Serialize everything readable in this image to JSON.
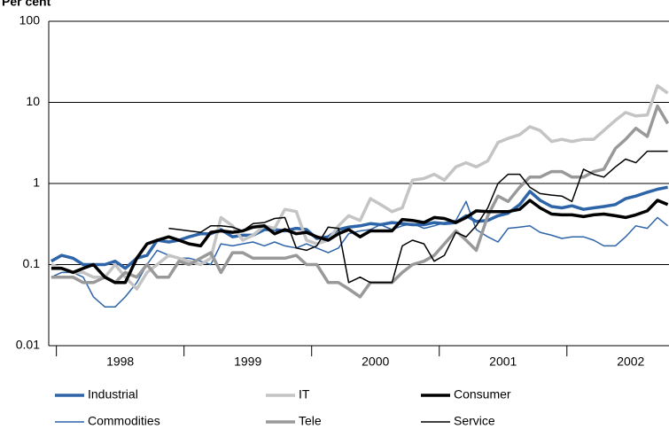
{
  "chart_data": {
    "type": "line",
    "y_label": "Per cent",
    "log_scale": true,
    "grid": true,
    "x": [
      1997.96,
      1998.04,
      1998.13,
      1998.21,
      1998.29,
      1998.38,
      1998.46,
      1998.54,
      1998.63,
      1998.71,
      1998.79,
      1998.88,
      1998.96,
      1999.04,
      1999.13,
      1999.21,
      1999.29,
      1999.38,
      1999.46,
      1999.54,
      1999.63,
      1999.71,
      1999.79,
      1999.88,
      1999.96,
      2000.04,
      2000.13,
      2000.21,
      2000.29,
      2000.38,
      2000.46,
      2000.54,
      2000.63,
      2000.71,
      2000.79,
      2000.88,
      2000.96,
      2001.04,
      2001.13,
      2001.21,
      2001.29,
      2001.38,
      2001.46,
      2001.54,
      2001.63,
      2001.71,
      2001.79,
      2001.88,
      2001.96,
      2002.04,
      2002.13,
      2002.21,
      2002.29,
      2002.38,
      2002.46,
      2002.54,
      2002.63,
      2002.71,
      2002.79
    ],
    "xlim": [
      1997.94,
      2002.8
    ],
    "xticks": [
      {
        "value": 1998.5,
        "label": "1998"
      },
      {
        "value": 1999.5,
        "label": "1999"
      },
      {
        "value": 2000.5,
        "label": "2000"
      },
      {
        "value": 2001.5,
        "label": "2001"
      },
      {
        "value": 2002.5,
        "label": "2002"
      }
    ],
    "xtick_marks": [
      1998,
      1999,
      2000,
      2001,
      2002
    ],
    "ylim": [
      0.01,
      100
    ],
    "yticks": [
      0.01,
      0.1,
      1,
      10,
      100
    ],
    "series": [
      {
        "name": "Industrial",
        "color": "#2e64a8",
        "width": 3.5,
        "values": [
          0.11,
          0.13,
          0.12,
          0.1,
          0.1,
          0.1,
          0.11,
          0.09,
          0.12,
          0.13,
          0.2,
          0.19,
          0.2,
          0.22,
          0.24,
          0.24,
          0.27,
          0.22,
          0.23,
          0.23,
          0.27,
          0.27,
          0.26,
          0.28,
          0.27,
          0.21,
          0.22,
          0.27,
          0.29,
          0.3,
          0.32,
          0.31,
          0.33,
          0.32,
          0.31,
          0.31,
          0.33,
          0.32,
          0.33,
          0.4,
          0.34,
          0.35,
          0.4,
          0.43,
          0.55,
          0.8,
          0.62,
          0.52,
          0.5,
          0.53,
          0.48,
          0.5,
          0.52,
          0.55,
          0.65,
          0.7,
          0.78,
          0.85,
          0.9
        ]
      },
      {
        "name": "IT",
        "color": "#c4c4c4",
        "width": 3.5,
        "values": [
          0.1,
          0.09,
          0.08,
          0.08,
          0.07,
          0.07,
          0.1,
          0.07,
          0.05,
          0.08,
          0.1,
          0.13,
          0.12,
          0.11,
          0.1,
          0.12,
          0.38,
          0.3,
          0.2,
          0.23,
          0.3,
          0.28,
          0.48,
          0.45,
          0.2,
          0.18,
          0.2,
          0.3,
          0.4,
          0.35,
          0.65,
          0.55,
          0.45,
          0.5,
          1.1,
          1.15,
          1.3,
          1.1,
          1.6,
          1.8,
          1.6,
          1.9,
          3.2,
          3.6,
          4,
          5,
          4.5,
          3.3,
          3.5,
          3.3,
          3.5,
          3.5,
          4.5,
          6,
          7.5,
          6.8,
          7,
          16,
          13
        ]
      },
      {
        "name": "Consumer",
        "color": "#000000",
        "width": 3.5,
        "values": [
          0.09,
          0.09,
          0.08,
          0.09,
          0.1,
          0.07,
          0.06,
          0.06,
          0.12,
          0.18,
          0.2,
          0.22,
          0.2,
          0.18,
          0.17,
          0.25,
          0.26,
          0.25,
          0.26,
          0.29,
          0.3,
          0.24,
          0.27,
          0.24,
          0.25,
          0.22,
          0.2,
          0.24,
          0.27,
          0.22,
          0.26,
          0.26,
          0.26,
          0.36,
          0.35,
          0.33,
          0.38,
          0.37,
          0.33,
          0.38,
          0.46,
          0.45,
          0.45,
          0.45,
          0.48,
          0.62,
          0.5,
          0.42,
          0.41,
          0.41,
          0.39,
          0.41,
          0.42,
          0.4,
          0.38,
          0.41,
          0.46,
          0.62,
          0.55
        ]
      },
      {
        "name": "Commodities",
        "color": "#2e64a8",
        "width": 1.5,
        "values": [
          0.07,
          0.08,
          0.08,
          0.07,
          0.04,
          0.03,
          0.03,
          0.04,
          0.06,
          0.1,
          0.15,
          0.13,
          0.12,
          0.12,
          0.11,
          0.1,
          0.18,
          0.17,
          0.18,
          0.19,
          0.17,
          0.19,
          0.17,
          0.16,
          0.18,
          0.16,
          0.14,
          0.16,
          0.24,
          0.26,
          0.27,
          0.31,
          0.27,
          0.3,
          0.32,
          0.28,
          0.3,
          0.33,
          0.35,
          0.6,
          0.27,
          0.22,
          0.19,
          0.28,
          0.29,
          0.3,
          0.25,
          0.23,
          0.21,
          0.22,
          0.22,
          0.2,
          0.17,
          0.17,
          0.22,
          0.3,
          0.28,
          0.38,
          0.3
        ]
      },
      {
        "name": "Tele",
        "color": "#999999",
        "width": 3.5,
        "values": [
          0.07,
          0.07,
          0.07,
          0.06,
          0.06,
          0.07,
          0.06,
          0.08,
          0.07,
          0.1,
          0.07,
          0.07,
          0.11,
          0.1,
          0.12,
          0.14,
          0.08,
          0.14,
          0.14,
          0.12,
          0.12,
          0.12,
          0.12,
          0.13,
          0.1,
          0.1,
          0.06,
          0.06,
          0.05,
          0.04,
          0.06,
          0.06,
          0.06,
          0.08,
          0.1,
          0.11,
          0.13,
          0.18,
          0.26,
          0.2,
          0.15,
          0.4,
          0.7,
          0.6,
          0.9,
          1.2,
          1.2,
          1.4,
          1.4,
          1.2,
          1.2,
          1.4,
          1.5,
          2.7,
          3.5,
          4.8,
          3.8,
          9,
          5.5
        ]
      },
      {
        "name": "Service",
        "color": "#000000",
        "width": 1.5,
        "values": [
          null,
          null,
          null,
          null,
          null,
          null,
          null,
          null,
          null,
          null,
          null,
          0.28,
          0.27,
          0.26,
          0.25,
          0.3,
          0.3,
          0.29,
          0.26,
          0.32,
          0.33,
          0.37,
          0.38,
          0.16,
          0.15,
          0.17,
          0.29,
          0.28,
          0.06,
          0.07,
          0.06,
          0.06,
          0.06,
          0.17,
          0.2,
          0.18,
          0.11,
          0.13,
          0.25,
          0.22,
          0.3,
          0.5,
          1,
          1.3,
          1.3,
          0.9,
          0.75,
          0.72,
          0.7,
          0.6,
          1.5,
          1.3,
          1.2,
          1.6,
          2,
          1.8,
          2.5,
          2.5,
          2.5
        ]
      }
    ],
    "legend": "bottom"
  }
}
